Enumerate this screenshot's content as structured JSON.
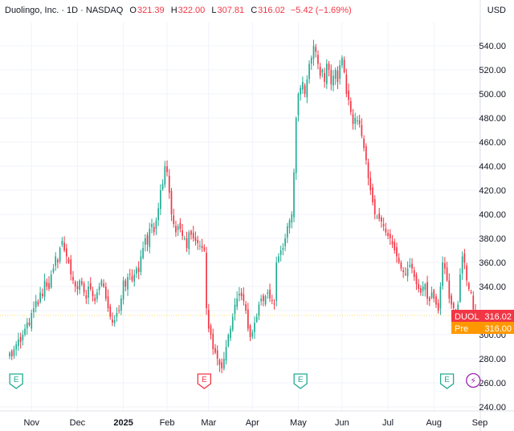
{
  "legend": {
    "symbol": "Duolingo, Inc. · 1D · NASDAQ",
    "open_label": "O",
    "open": "321.39",
    "high_label": "H",
    "high": "322.00",
    "low_label": "L",
    "low": "307.81",
    "close_label": "C",
    "close": "316.02",
    "change": "−5.42 (−1.69%)"
  },
  "currency": "USD",
  "tags": {
    "last": {
      "label": "DUOL",
      "value": "316.02",
      "color": "#f23645"
    },
    "pre": {
      "label": "Pre",
      "value": "316.00",
      "color": "#ff9800"
    }
  },
  "colors": {
    "up": "#22ab94",
    "down": "#f23645",
    "earnings_green": "#22ab94",
    "earnings_red": "#f23645",
    "dividend": "#9c27b0",
    "grid": "#f0f3fa"
  },
  "chart_data": {
    "type": "candlestick",
    "title": "Duolingo, Inc. · 1D · NASDAQ",
    "ylim": [
      240,
      550
    ],
    "y_ticks": [
      240,
      260,
      280,
      300,
      320,
      340,
      360,
      380,
      400,
      420,
      440,
      460,
      480,
      500,
      520,
      540
    ],
    "y_tick_labels": [
      "240.00",
      "260.00",
      "280.00",
      "300.00",
      "",
      "340.00",
      "360.00",
      "380.00",
      "400.00",
      "420.00",
      "440.00",
      "460.00",
      "480.00",
      "500.00",
      "520.00",
      "540.00"
    ],
    "x_tick_labels": [
      "Nov",
      "Dec",
      "2025",
      "Feb",
      "Mar",
      "Apr",
      "May",
      "Jun",
      "Jul",
      "Aug",
      "Sep"
    ],
    "x_tick_index": [
      10,
      31,
      52,
      72,
      91,
      111,
      132,
      152,
      173,
      194,
      215
    ],
    "last_price": 316.02,
    "pre_market_price": 316.0,
    "events": [
      {
        "type": "earnings",
        "label": "E",
        "index": 3,
        "color": "earnings_green"
      },
      {
        "type": "earnings",
        "label": "E",
        "index": 89,
        "color": "earnings_red"
      },
      {
        "type": "earnings",
        "label": "E",
        "index": 133,
        "color": "earnings_green"
      },
      {
        "type": "earnings",
        "label": "E",
        "index": 200,
        "color": "earnings_green"
      },
      {
        "type": "dividend",
        "label": "⚡",
        "index": 212,
        "color": "dividend"
      }
    ],
    "series_close": [
      285,
      282,
      288,
      292,
      296,
      294,
      300,
      305,
      310,
      308,
      318,
      322,
      328,
      325,
      335,
      332,
      345,
      340,
      338,
      350,
      355,
      365,
      360,
      372,
      378,
      370,
      365,
      360,
      350,
      345,
      340,
      338,
      345,
      342,
      335,
      330,
      340,
      338,
      332,
      328,
      335,
      340,
      345,
      340,
      330,
      322,
      315,
      310,
      312,
      318,
      320,
      330,
      345,
      340,
      348,
      350,
      345,
      350,
      355,
      352,
      365,
      372,
      380,
      375,
      388,
      392,
      385,
      395,
      405,
      420,
      425,
      440,
      435,
      418,
      400,
      392,
      385,
      390,
      388,
      382,
      380,
      372,
      385,
      383,
      380,
      378,
      376,
      374,
      372,
      370,
      322,
      305,
      300,
      288,
      285,
      280,
      275,
      272,
      280,
      290,
      300,
      305,
      315,
      325,
      330,
      334,
      332,
      328,
      320,
      305,
      298,
      302,
      310,
      315,
      325,
      330,
      328,
      332,
      335,
      330,
      328,
      325,
      360,
      365,
      370,
      372,
      380,
      390,
      395,
      400,
      435,
      480,
      500,
      505,
      510,
      500,
      512,
      525,
      530,
      540,
      535,
      525,
      515,
      520,
      510,
      525,
      520,
      508,
      515,
      520,
      510,
      524,
      530,
      518,
      500,
      495,
      485,
      475,
      480,
      478,
      475,
      465,
      455,
      445,
      430,
      420,
      410,
      400,
      398,
      396,
      394,
      390,
      385,
      382,
      380,
      375,
      370,
      365,
      360,
      355,
      352,
      350,
      355,
      358,
      355,
      348,
      342,
      338,
      335,
      340,
      342,
      330,
      328,
      335,
      330,
      325,
      320,
      340,
      360,
      355,
      345,
      330,
      325,
      322,
      318,
      325,
      350,
      365,
      360,
      345,
      338,
      335,
      321,
      316
    ]
  }
}
